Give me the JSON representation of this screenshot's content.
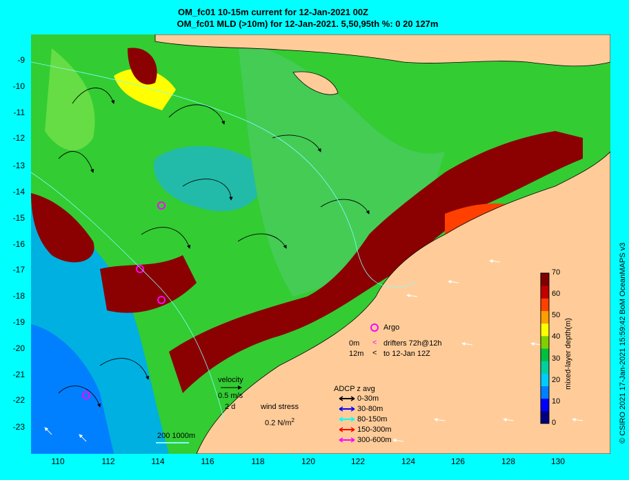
{
  "title_line1": "OM_fc01 10-15m current for 12-Jan-2021 00Z",
  "title_line2": "OM_fc01 MLD (>10m) for 12-Jan-2021. 5,50,95th %: 0   20   127m",
  "y_ticks": [
    "-9",
    "-10",
    "-11",
    "-12",
    "-13",
    "-14",
    "-15",
    "-16",
    "-17",
    "-18",
    "-19",
    "-20",
    "-21",
    "-22",
    "-23"
  ],
  "x_ticks": [
    "110",
    "112",
    "114",
    "116",
    "118",
    "120",
    "122",
    "124",
    "126",
    "128",
    "130"
  ],
  "legend": {
    "argo": "Argo",
    "drifters_0m": "0m",
    "drifters_12m": "12m",
    "drifters_line1": "drifters 72h@12h",
    "drifters_line2": "to 12-Jan 12Z",
    "velocity": "velocity",
    "velocity_scale": "0.5 m/s",
    "velocity_days": "2 d",
    "wind_stress": "wind stress",
    "wind_scale": "0.2 N/m",
    "wind_sup": "2",
    "adcp_title": "ADCP z avg",
    "adcp_items": [
      {
        "label": "0-30m",
        "color": "#000000"
      },
      {
        "label": "30-80m",
        "color": "#0000ff"
      },
      {
        "label": "80-150m",
        "color": "#00ffff"
      },
      {
        "label": "150-300m",
        "color": "#ff0000"
      },
      {
        "label": "300-600m",
        "color": "#ff00ff"
      }
    ],
    "contours": "200  1000m"
  },
  "colorbar": {
    "label": "mixed-layer depth(m)",
    "ticks": [
      "70",
      "60",
      "50",
      "40",
      "30",
      "20",
      "10",
      "0"
    ],
    "colors": [
      "#00007f",
      "#0000ff",
      "#0080ff",
      "#00ccff",
      "#00d0a0",
      "#00c040",
      "#80d000",
      "#ffff00",
      "#ffa000",
      "#ff4000",
      "#c00000",
      "#7f0000"
    ]
  },
  "credit": "© CSIRO 2021  17-Jan-2021 15:59:42 BoM OceanMAPS v3",
  "colors": {
    "background": "#00ffff",
    "land": "#ffcc99",
    "ocean_green": "#33cc33",
    "deep_mld": "#8b0000"
  }
}
